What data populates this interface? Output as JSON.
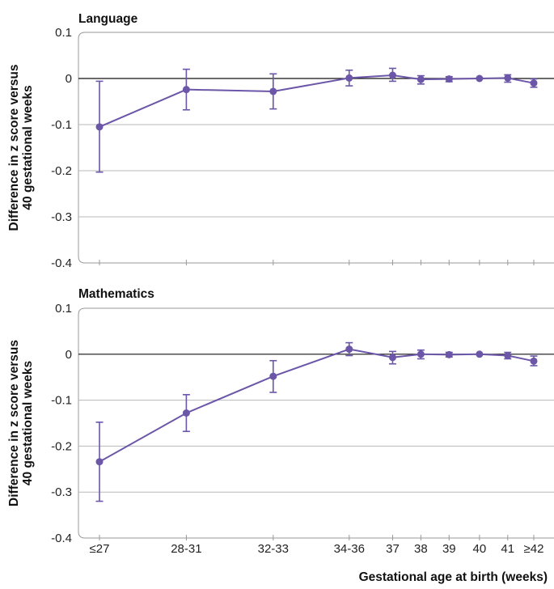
{
  "chart_data": [
    {
      "type": "line",
      "title": "Language",
      "ylabel": [
        "Difference in z score versus",
        "40 gestational weeks"
      ],
      "xlabel": "",
      "ylim": [
        -0.4,
        0.1
      ],
      "yticks": [
        0.1,
        0,
        -0.1,
        -0.2,
        -0.3,
        -0.4
      ],
      "ytick_labels": [
        "0.1",
        "0",
        "-0.1",
        "-0.2",
        "-0.3",
        "-0.4"
      ],
      "grid": true,
      "reference_line": 0,
      "categories": [
        "≤27",
        "28-31",
        "32-33",
        "34-36",
        "37",
        "38",
        "39",
        "40",
        "41",
        "≥42"
      ],
      "x_weeks": [
        25.5,
        29.5,
        33.5,
        37,
        39,
        40.3,
        41.6,
        43,
        44.3,
        45.5
      ],
      "series": [
        {
          "values": [
            -0.105,
            -0.024,
            -0.028,
            0.001,
            0.007,
            -0.002,
            -0.001,
            0.0,
            0.001,
            -0.01
          ],
          "ci_low": [
            -0.203,
            -0.068,
            -0.066,
            -0.016,
            -0.006,
            -0.012,
            -0.007,
            0.0,
            -0.008,
            -0.019
          ],
          "ci_high": [
            -0.006,
            0.02,
            0.01,
            0.018,
            0.022,
            0.006,
            0.004,
            0.0,
            0.008,
            -0.001
          ]
        }
      ]
    },
    {
      "type": "line",
      "title": "Mathematics",
      "ylabel": [
        "Difference in z score versus",
        "40 gestational weeks"
      ],
      "xlabel": "Gestational age at birth (weeks)",
      "ylim": [
        -0.4,
        0.1
      ],
      "yticks": [
        0.1,
        0,
        -0.1,
        -0.2,
        -0.3,
        -0.4
      ],
      "ytick_labels": [
        "0.1",
        "0",
        "-0.1",
        "-0.2",
        "-0.3",
        "-0.4"
      ],
      "grid": true,
      "reference_line": 0,
      "categories": [
        "≤27",
        "28-31",
        "32-33",
        "34-36",
        "37",
        "38",
        "39",
        "40",
        "41",
        "≥42"
      ],
      "x_weeks": [
        25.5,
        29.5,
        33.5,
        37,
        39,
        40.3,
        41.6,
        43,
        44.3,
        45.5
      ],
      "series": [
        {
          "values": [
            -0.234,
            -0.128,
            -0.048,
            0.011,
            -0.007,
            0.0,
            -0.001,
            0.0,
            -0.003,
            -0.015
          ],
          "ci_low": [
            -0.32,
            -0.168,
            -0.083,
            -0.003,
            -0.021,
            -0.01,
            -0.006,
            0.0,
            -0.01,
            -0.025
          ],
          "ci_high": [
            -0.148,
            -0.088,
            -0.014,
            0.025,
            0.006,
            0.009,
            0.004,
            0.0,
            0.004,
            -0.004
          ]
        }
      ]
    }
  ],
  "colors": {
    "series": "#6b56a8",
    "grid": "#b8b8b8",
    "frame": "#999999",
    "zero_line": "#111111"
  }
}
